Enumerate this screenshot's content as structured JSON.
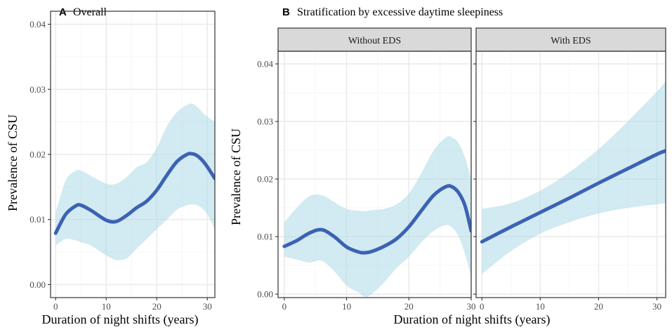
{
  "colors": {
    "band": "#add8e6",
    "curve": "#3b62b3",
    "strip": "#d9d9d9",
    "grid": "#ebebeb"
  },
  "chart_data": [
    {
      "type": "line",
      "panel_letter": "A",
      "title": "Overall",
      "xlabel": "Duration of night shifts (years)",
      "ylabel": "Prevalence of CSU",
      "xlim": [
        -1,
        31.5
      ],
      "ylim": [
        -0.002,
        0.042
      ],
      "xticks": [
        0,
        10,
        20,
        30
      ],
      "yticks": [
        0.0,
        0.01,
        0.02,
        0.03,
        0.04
      ],
      "ytick_labels": [
        "0.00",
        "0.01",
        "0.02",
        "0.03",
        "0.04"
      ],
      "series": [
        {
          "name": "fit",
          "x": [
            0,
            2,
            4,
            5,
            7,
            10,
            12,
            14,
            16,
            18,
            20,
            22,
            24,
            26,
            27,
            28,
            29,
            30,
            31.5
          ],
          "y": [
            0.0079,
            0.0108,
            0.0121,
            0.0122,
            0.0114,
            0.0099,
            0.0097,
            0.0106,
            0.0118,
            0.0128,
            0.0145,
            0.0168,
            0.0189,
            0.02,
            0.0201,
            0.0198,
            0.0191,
            0.0181,
            0.0163
          ],
          "lower": [
            0.006,
            0.007,
            0.0068,
            0.0065,
            0.006,
            0.0045,
            0.0038,
            0.004,
            0.0055,
            0.007,
            0.0085,
            0.01,
            0.0115,
            0.0122,
            0.0123,
            0.0122,
            0.0117,
            0.0108,
            0.0085
          ],
          "upper": [
            0.011,
            0.016,
            0.0175,
            0.0175,
            0.0167,
            0.0155,
            0.0155,
            0.0165,
            0.018,
            0.0188,
            0.021,
            0.0243,
            0.0265,
            0.0276,
            0.0278,
            0.0273,
            0.0265,
            0.0258,
            0.025
          ]
        }
      ]
    },
    {
      "type": "line",
      "panel_letter": "B",
      "title": "Stratification by excessive daytime sleepiness",
      "strip": "Without EDS",
      "xlabel": "Duration of night shifts (years)",
      "ylabel": "Prevalence of CSU",
      "xlim": [
        -1,
        30
      ],
      "ylim": [
        -0.0006,
        0.0422
      ],
      "xticks": [
        0,
        10,
        20,
        30
      ],
      "yticks": [
        0.0,
        0.01,
        0.02,
        0.03,
        0.04
      ],
      "ytick_labels": [
        "0.00",
        "0.01",
        "0.02",
        "0.03",
        "0.04"
      ],
      "series": [
        {
          "name": "fit",
          "x": [
            0,
            2,
            4,
            6,
            8,
            10,
            12,
            13,
            14,
            16,
            18,
            20,
            22,
            24,
            26,
            27,
            28,
            29,
            30
          ],
          "y": [
            0.0083,
            0.0093,
            0.0106,
            0.0112,
            0.01,
            0.0082,
            0.0073,
            0.0072,
            0.0074,
            0.0083,
            0.0096,
            0.0117,
            0.0145,
            0.0172,
            0.0187,
            0.0186,
            0.0176,
            0.0154,
            0.011
          ],
          "lower": [
            0.0065,
            0.006,
            0.0055,
            0.0058,
            0.004,
            0.0015,
            0.0002,
            -0.0005,
            0.0,
            0.002,
            0.0045,
            0.0065,
            0.009,
            0.011,
            0.012,
            0.0115,
            0.01,
            0.007,
            0.003
          ],
          "upper": [
            0.0125,
            0.015,
            0.017,
            0.0172,
            0.016,
            0.0148,
            0.0145,
            0.0144,
            0.0146,
            0.0148,
            0.0156,
            0.0175,
            0.021,
            0.025,
            0.0273,
            0.0272,
            0.0262,
            0.0238,
            0.02
          ]
        }
      ]
    },
    {
      "type": "line",
      "panel_letter": "",
      "title": "",
      "strip": "With EDS",
      "xlabel": "",
      "ylabel": "",
      "xlim": [
        -1,
        31.5
      ],
      "ylim": [
        -0.0006,
        0.0422
      ],
      "xticks": [
        0,
        10,
        20,
        30
      ],
      "yticks": [
        0.0,
        0.01,
        0.02,
        0.03,
        0.04
      ],
      "ytick_labels": [
        "0.00",
        "0.01",
        "0.02",
        "0.03",
        "0.04"
      ],
      "series": [
        {
          "name": "fit",
          "x": [
            0,
            5,
            10,
            15,
            20,
            25,
            30,
            31.5
          ],
          "y": [
            0.0091,
            0.0117,
            0.0142,
            0.0167,
            0.0193,
            0.0218,
            0.0243,
            0.0249
          ],
          "lower": [
            0.0035,
            0.0075,
            0.0105,
            0.0125,
            0.014,
            0.015,
            0.0156,
            0.0158
          ],
          "upper": [
            0.0148,
            0.0158,
            0.018,
            0.0212,
            0.0252,
            0.03,
            0.0352,
            0.037
          ]
        }
      ]
    }
  ]
}
